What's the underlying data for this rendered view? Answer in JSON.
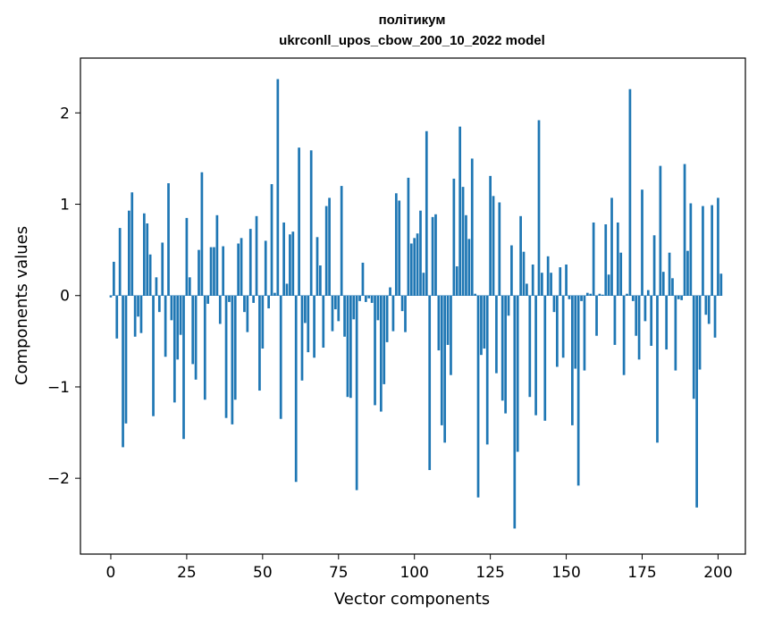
{
  "chart_data": {
    "type": "bar",
    "title_line1": "політикум",
    "title_line2": "ukrconll_upos_cbow_200_10_2022 model",
    "xlabel": "Vector components",
    "ylabel": "Components values",
    "xlim": [
      -10,
      209
    ],
    "ylim": [
      -2.83,
      2.6
    ],
    "xticks": [
      0,
      25,
      50,
      75,
      100,
      125,
      150,
      175,
      200
    ],
    "xtick_labels": [
      "0",
      "25",
      "50",
      "75",
      "100",
      "125",
      "150",
      "175",
      "200"
    ],
    "yticks": [
      -2,
      -1,
      0,
      1,
      2
    ],
    "ytick_labels": [
      "−2",
      "−1",
      "0",
      "1",
      "2"
    ],
    "bar_color": "#1f77b4",
    "grid": false,
    "legend": "none",
    "values": [
      -0.02,
      0.37,
      -0.47,
      0.74,
      -1.66,
      -1.4,
      0.93,
      1.13,
      -0.45,
      -0.23,
      -0.41,
      0.9,
      0.79,
      0.45,
      -1.32,
      0.2,
      -0.18,
      0.58,
      -0.67,
      1.23,
      -0.27,
      -1.17,
      -0.7,
      -0.43,
      -1.57,
      0.85,
      0.2,
      -0.75,
      -0.92,
      0.5,
      1.35,
      -1.14,
      -0.09,
      0.53,
      0.53,
      0.88,
      -0.31,
      0.54,
      -1.34,
      -0.07,
      -1.41,
      -1.14,
      0.57,
      0.63,
      -0.18,
      -0.4,
      0.73,
      -0.08,
      0.87,
      -1.04,
      -0.58,
      0.6,
      -0.14,
      1.22,
      0.03,
      2.37,
      -1.35,
      0.8,
      0.13,
      0.67,
      0.7,
      -2.04,
      1.62,
      -0.93,
      -0.3,
      -0.62,
      1.59,
      -0.68,
      0.64,
      0.33,
      -0.57,
      0.98,
      1.07,
      -0.39,
      -0.15,
      -0.28,
      1.2,
      -0.45,
      -1.11,
      -1.12,
      -0.26,
      -2.13,
      -0.06,
      0.36,
      -0.07,
      -0.03,
      -0.08,
      -1.2,
      -0.27,
      -1.27,
      -0.97,
      -0.51,
      0.09,
      -0.39,
      1.12,
      1.04,
      -0.17,
      -0.4,
      1.29,
      0.57,
      0.63,
      0.68,
      0.93,
      0.25,
      1.8,
      -1.91,
      0.86,
      0.89,
      -0.6,
      -1.42,
      -1.61,
      -0.54,
      -0.87,
      1.28,
      0.32,
      1.85,
      1.19,
      0.88,
      0.62,
      1.5,
      0.02,
      -2.21,
      -0.65,
      -0.58,
      -1.63,
      1.31,
      1.09,
      -0.85,
      1.02,
      -1.15,
      -1.29,
      -0.22,
      0.55,
      -2.55,
      -1.71,
      0.87,
      0.48,
      0.13,
      -1.11,
      0.34,
      -1.31,
      1.92,
      0.25,
      -1.37,
      0.43,
      0.25,
      -0.18,
      -0.78,
      0.31,
      -0.68,
      0.34,
      -0.04,
      -1.42,
      -0.8,
      -2.08,
      -0.06,
      -0.82,
      0.03,
      0.02,
      0.8,
      -0.44,
      0.02,
      0.01,
      0.78,
      0.23,
      1.07,
      -0.54,
      0.8,
      0.47,
      -0.87,
      0.02,
      2.26,
      -0.06,
      -0.44,
      -0.7,
      1.16,
      -0.28,
      0.06,
      -0.55,
      0.66,
      -1.61,
      1.42,
      0.26,
      -0.59,
      0.47,
      0.19,
      -0.82,
      -0.04,
      -0.05,
      1.44,
      0.49,
      1.01,
      -1.13,
      -2.32,
      -0.81,
      0.98,
      -0.21,
      -0.31,
      0.99,
      -0.46,
      1.07,
      0.24
    ]
  }
}
